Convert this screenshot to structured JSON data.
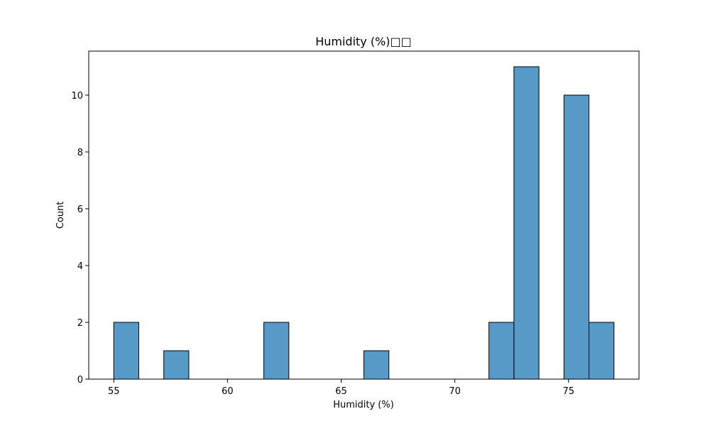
{
  "chart_data": {
    "type": "bar",
    "title": "Humidity (%)□□",
    "xlabel": "Humidity (%)",
    "ylabel": "Count",
    "xlim": [
      53.9,
      78.1
    ],
    "ylim": [
      0,
      11.55
    ],
    "xticks": [
      55,
      60,
      65,
      70,
      75
    ],
    "yticks": [
      0,
      2,
      4,
      6,
      8,
      10
    ],
    "bar_color": "#5799c7",
    "edge_color": "#000000",
    "bins": [
      {
        "start": 55.0,
        "end": 56.1,
        "count": 2
      },
      {
        "start": 56.1,
        "end": 57.2,
        "count": 0
      },
      {
        "start": 57.2,
        "end": 58.3,
        "count": 1
      },
      {
        "start": 58.3,
        "end": 59.4,
        "count": 0
      },
      {
        "start": 59.4,
        "end": 60.5,
        "count": 0
      },
      {
        "start": 60.5,
        "end": 61.6,
        "count": 0
      },
      {
        "start": 61.6,
        "end": 62.7,
        "count": 2
      },
      {
        "start": 62.7,
        "end": 63.8,
        "count": 0
      },
      {
        "start": 63.8,
        "end": 64.9,
        "count": 0
      },
      {
        "start": 64.9,
        "end": 66.0,
        "count": 0
      },
      {
        "start": 66.0,
        "end": 67.1,
        "count": 1
      },
      {
        "start": 67.1,
        "end": 68.2,
        "count": 0
      },
      {
        "start": 68.2,
        "end": 69.3,
        "count": 0
      },
      {
        "start": 69.3,
        "end": 70.4,
        "count": 0
      },
      {
        "start": 70.4,
        "end": 71.5,
        "count": 0
      },
      {
        "start": 71.5,
        "end": 72.6,
        "count": 2
      },
      {
        "start": 72.6,
        "end": 73.7,
        "count": 11
      },
      {
        "start": 73.7,
        "end": 74.8,
        "count": 0
      },
      {
        "start": 74.8,
        "end": 75.9,
        "count": 10
      },
      {
        "start": 75.9,
        "end": 77.0,
        "count": 2
      }
    ]
  }
}
